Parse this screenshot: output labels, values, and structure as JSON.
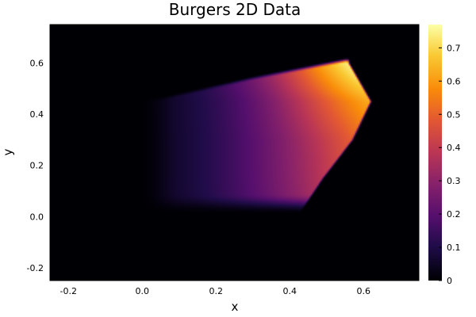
{
  "chart_data": {
    "type": "heatmap",
    "title": "Burgers 2D Data",
    "xlabel": "x",
    "ylabel": "y",
    "xlim": [
      -0.25,
      0.75
    ],
    "ylim": [
      -0.25,
      0.75
    ],
    "x_ticks": [
      -0.2,
      0.0,
      0.2,
      0.4,
      0.6
    ],
    "y_ticks": [
      -0.2,
      0.0,
      0.2,
      0.4,
      0.6
    ],
    "x_tick_labels": [
      "-0.2",
      "0.0",
      "0.2",
      "0.4",
      "0.6"
    ],
    "y_tick_labels": [
      "-0.2",
      "0.0",
      "0.2",
      "0.4",
      "0.6"
    ],
    "colorbar": {
      "range": [
        0,
        0.77
      ],
      "ticks": [
        0,
        0.1,
        0.2,
        0.3,
        0.4,
        0.5,
        0.6,
        0.7
      ],
      "tick_labels": [
        "0",
        "0.1",
        "0.2",
        "0.3",
        "0.4",
        "0.5",
        "0.6",
        "0.7"
      ],
      "colormap": "inferno"
    },
    "grid": false,
    "field": {
      "background_value": 0,
      "max_value": 0.77,
      "max_location": [
        0.57,
        0.59
      ],
      "left_edge_x": 0.0,
      "right_front_x_at_y": [
        [
          0.6,
          0.56
        ],
        [
          0.45,
          0.62
        ],
        [
          0.3,
          0.57
        ],
        [
          0.15,
          0.49
        ],
        [
          0.0,
          0.42
        ]
      ],
      "bottom_y": 0.02,
      "top_y_at_x": [
        [
          0.05,
          0.46
        ],
        [
          0.3,
          0.54
        ],
        [
          0.55,
          0.61
        ]
      ]
    }
  }
}
